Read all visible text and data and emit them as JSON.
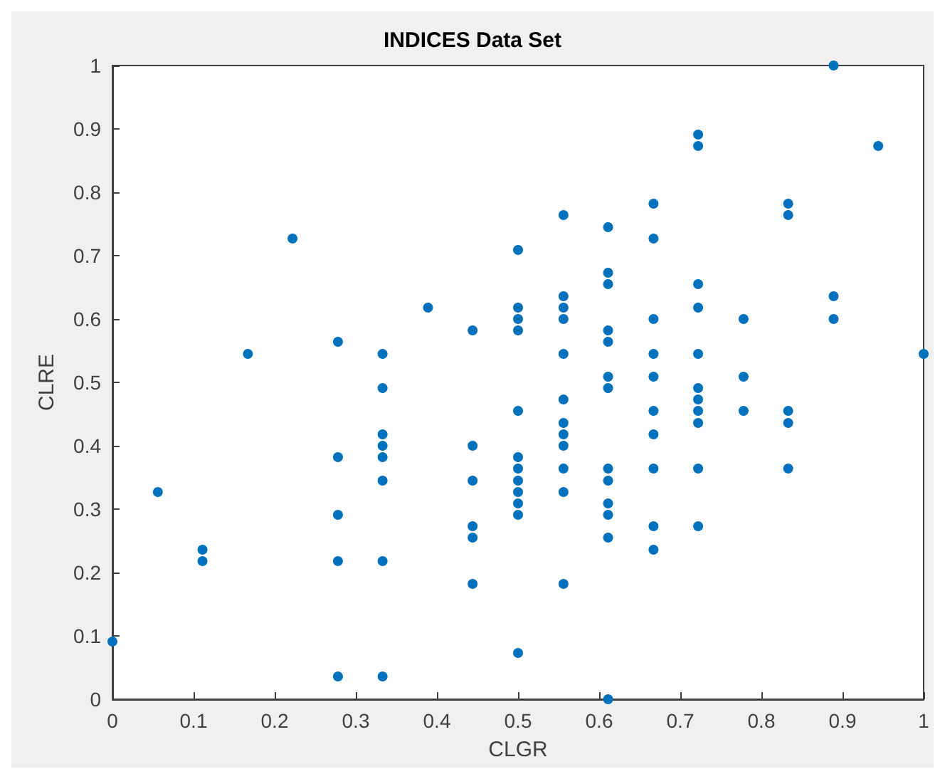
{
  "chart_data": {
    "type": "scatter",
    "title": "INDICES Data Set",
    "xlabel": "CLGR",
    "ylabel": "CLRE",
    "marker": "circle",
    "xlim": [
      0,
      1
    ],
    "ylim": [
      0,
      1
    ],
    "xticks": [
      0,
      0.1,
      0.2,
      0.3,
      0.4,
      0.5,
      0.6,
      0.7,
      0.8,
      0.9,
      1
    ],
    "yticks": [
      0,
      0.1,
      0.2,
      0.3,
      0.4,
      0.5,
      0.6,
      0.7,
      0.8,
      0.9,
      1
    ],
    "series": [
      {
        "color": "#0072bd",
        "x": [
          0,
          0.056,
          0.111,
          0.111,
          0.167,
          0.222,
          0.278,
          0.278,
          0.278,
          0.278,
          0.278,
          0.333,
          0.333,
          0.333,
          0.333,
          0.333,
          0.333,
          0.333,
          0.333,
          0.389,
          0.444,
          0.444,
          0.444,
          0.444,
          0.444,
          0.444,
          0.5,
          0.5,
          0.5,
          0.5,
          0.5,
          0.5,
          0.5,
          0.5,
          0.5,
          0.5,
          0.5,
          0.5,
          0.556,
          0.556,
          0.556,
          0.556,
          0.556,
          0.556,
          0.556,
          0.556,
          0.556,
          0.556,
          0.556,
          0.556,
          0.611,
          0.611,
          0.611,
          0.611,
          0.611,
          0.611,
          0.611,
          0.611,
          0.611,
          0.611,
          0.611,
          0.611,
          0.611,
          0.667,
          0.667,
          0.667,
          0.667,
          0.667,
          0.667,
          0.667,
          0.667,
          0.667,
          0.667,
          0.722,
          0.722,
          0.722,
          0.722,
          0.722,
          0.722,
          0.722,
          0.722,
          0.722,
          0.722,
          0.722,
          0.778,
          0.778,
          0.778,
          0.833,
          0.833,
          0.833,
          0.833,
          0.833,
          0.889,
          0.889,
          0.889,
          0.944,
          1
        ],
        "values": [
          0.091,
          0.327,
          0.236,
          0.218,
          0.545,
          0.727,
          0.564,
          0.382,
          0.291,
          0.218,
          0.036,
          0.545,
          0.491,
          0.418,
          0.4,
          0.382,
          0.345,
          0.218,
          0.036,
          0.618,
          0.582,
          0.4,
          0.345,
          0.273,
          0.255,
          0.182,
          0.709,
          0.618,
          0.6,
          0.582,
          0.455,
          0.382,
          0.364,
          0.345,
          0.327,
          0.309,
          0.291,
          0.073,
          0.764,
          0.636,
          0.618,
          0.6,
          0.545,
          0.473,
          0.436,
          0.418,
          0.4,
          0.364,
          0.327,
          0.182,
          0.745,
          0.673,
          0.655,
          0.582,
          0.564,
          0.509,
          0.491,
          0.364,
          0.345,
          0.309,
          0.291,
          0.255,
          0,
          0.782,
          0.727,
          0.6,
          0.545,
          0.509,
          0.455,
          0.418,
          0.364,
          0.273,
          0.236,
          0.891,
          0.873,
          0.655,
          0.618,
          0.545,
          0.491,
          0.473,
          0.455,
          0.436,
          0.364,
          0.273,
          0.6,
          0.509,
          0.455,
          0.782,
          0.764,
          0.455,
          0.436,
          0.364,
          1,
          0.636,
          0.6,
          0.873,
          0.545
        ]
      }
    ]
  }
}
